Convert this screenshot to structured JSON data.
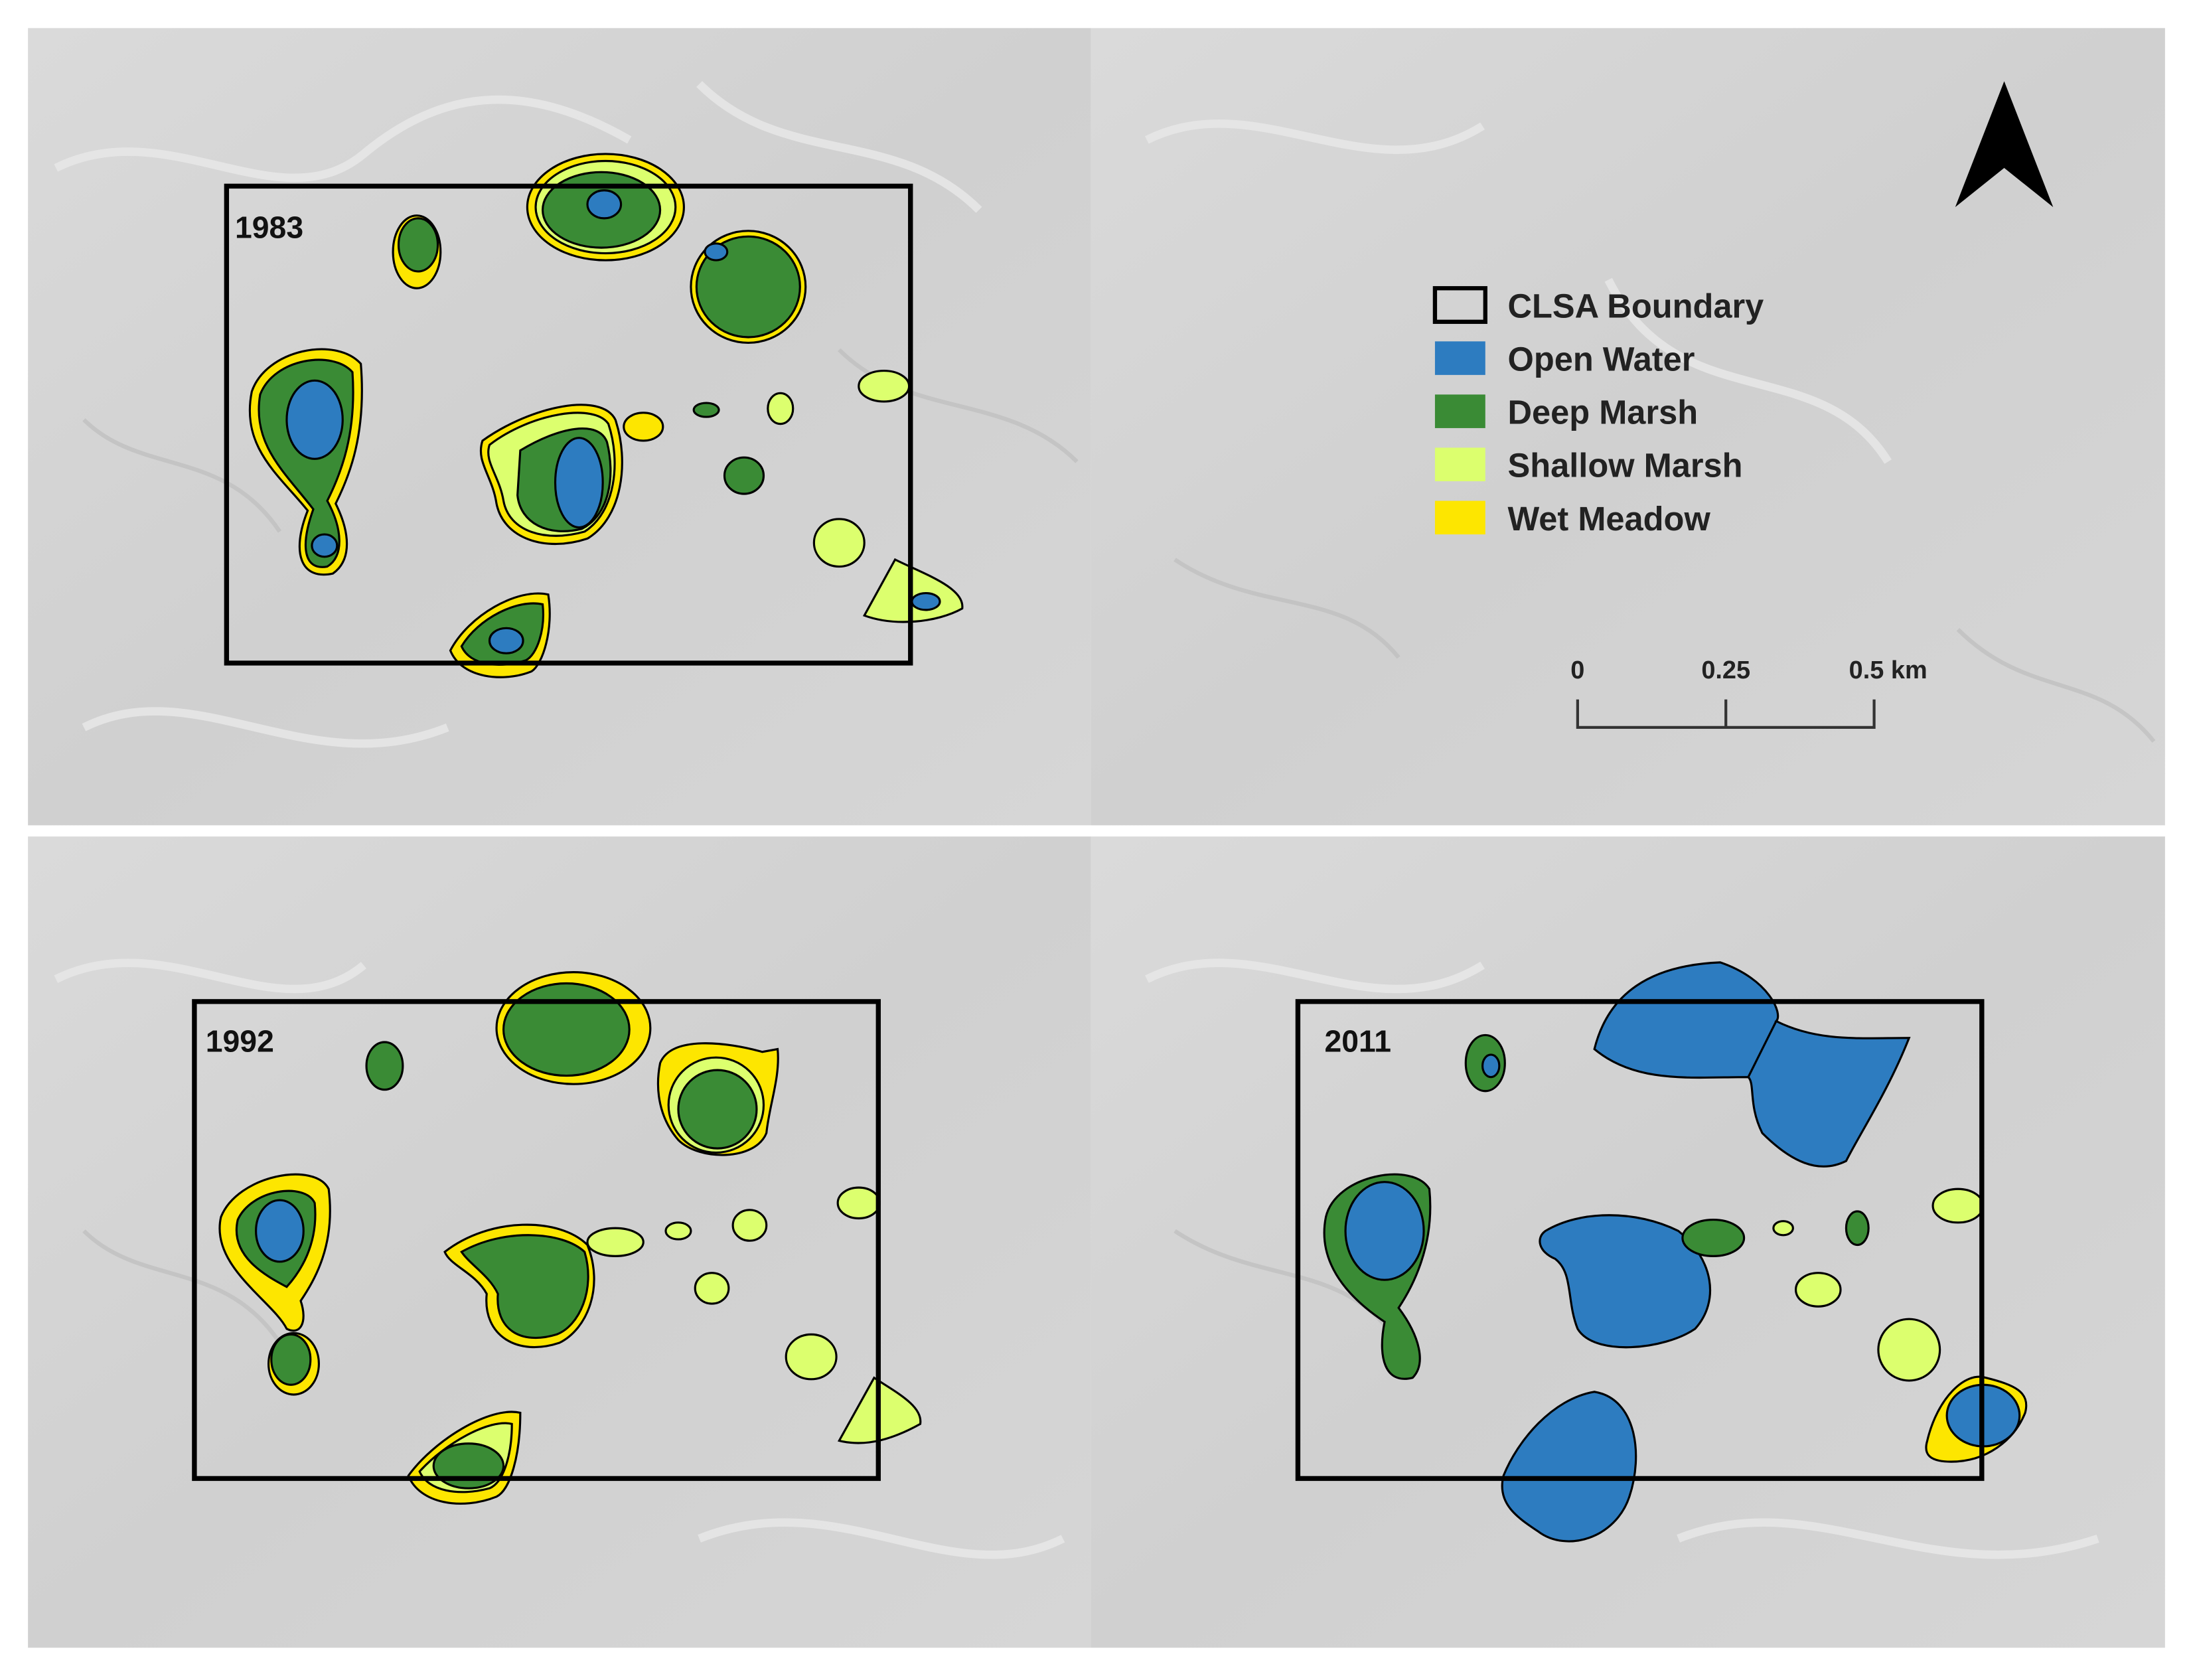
{
  "panels": [
    {
      "year": "1983"
    },
    {
      "year": "1992"
    },
    {
      "year": "2011"
    }
  ],
  "legend": {
    "items": [
      "CLSA Boundary",
      "Open Water",
      "Deep Marsh",
      "Shallow Marsh",
      "Wet Meadow"
    ]
  },
  "scale_bar": {
    "labels": [
      "0",
      "0.25",
      "0.5 km"
    ]
  }
}
